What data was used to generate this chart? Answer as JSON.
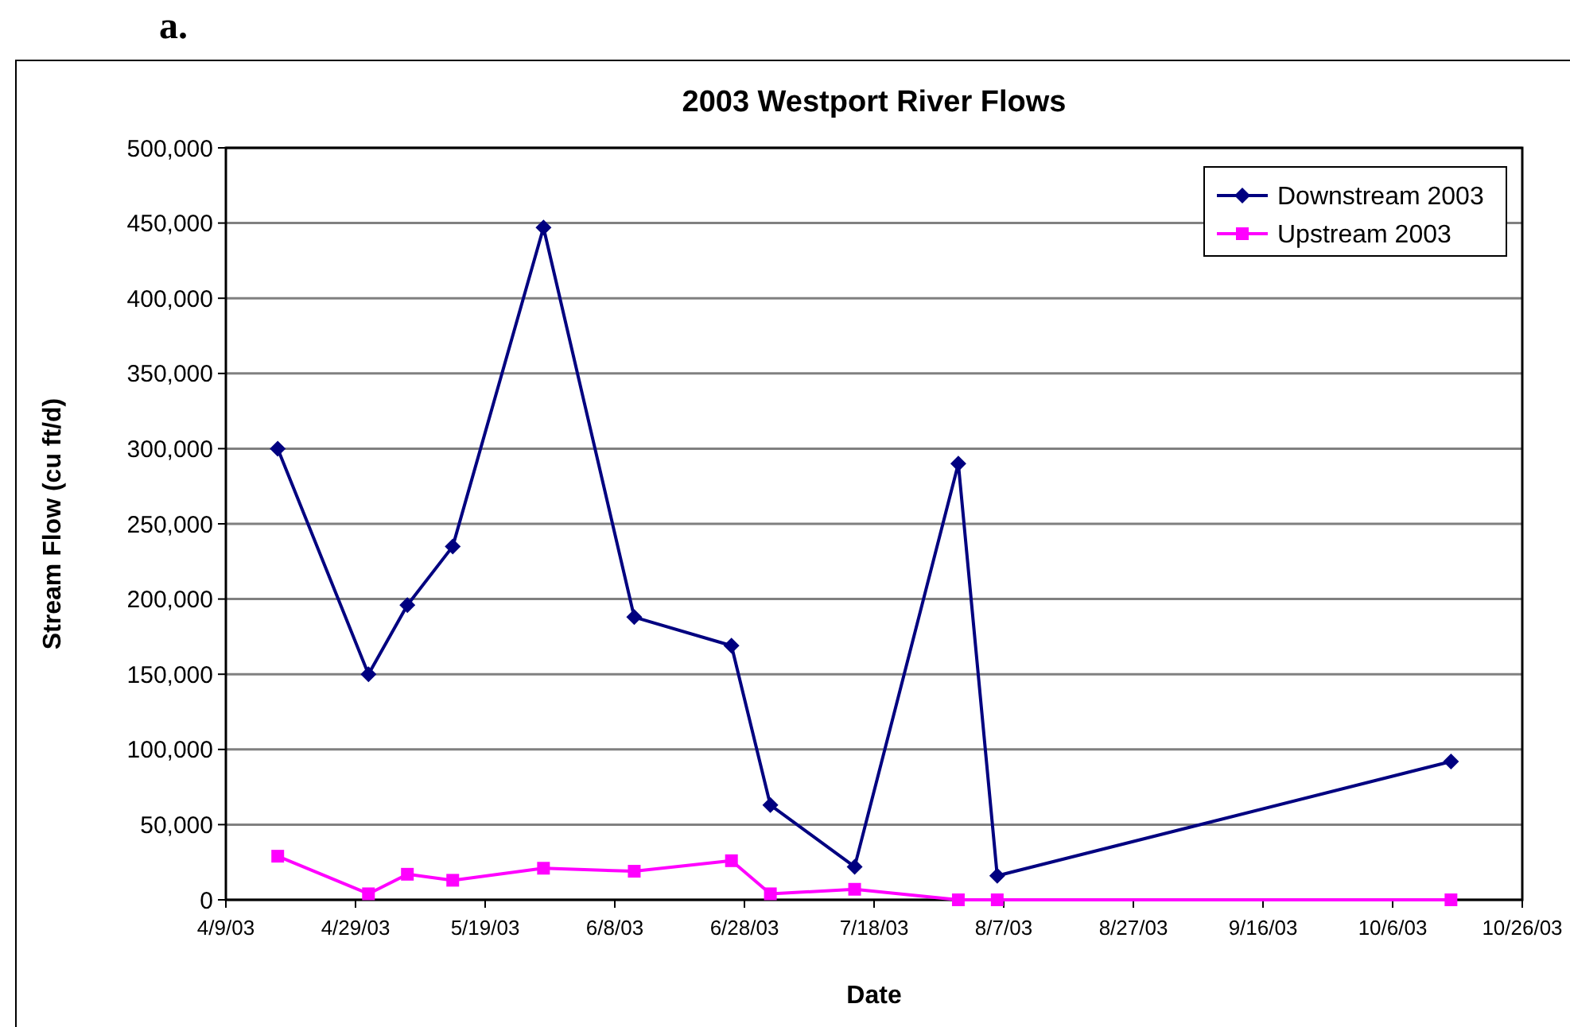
{
  "chart_data": {
    "type": "line",
    "title": "2003 Westport River Flows",
    "xlabel": "Date",
    "ylabel": "Stream Flow (cu ft/d)",
    "annotations": [
      "a."
    ],
    "x": [
      "2003-04-17",
      "2003-05-01",
      "2003-05-07",
      "2003-05-14",
      "2003-05-28",
      "2003-06-11",
      "2003-06-26",
      "2003-07-02",
      "2003-07-15",
      "2003-07-31",
      "2003-08-06",
      "2003-10-15"
    ],
    "series": [
      {
        "name": "Downstream 2003",
        "color": "#000080",
        "marker": "diamond",
        "values": [
          300000,
          150000,
          196000,
          235000,
          447000,
          188000,
          169000,
          63000,
          22000,
          290000,
          16000,
          92000
        ]
      },
      {
        "name": "Upstream 2003",
        "color": "#ff00ff",
        "marker": "square",
        "values": [
          29000,
          4000,
          17000,
          13000,
          21000,
          19000,
          26000,
          4000,
          7000,
          0,
          0,
          0
        ]
      }
    ],
    "xlim": [
      "2003-04-09",
      "2003-10-26"
    ],
    "xticks": [
      {
        "value": "2003-04-09",
        "label": "4/9/03"
      },
      {
        "value": "2003-04-29",
        "label": "4/29/03"
      },
      {
        "value": "2003-05-19",
        "label": "5/19/03"
      },
      {
        "value": "2003-06-08",
        "label": "6/8/03"
      },
      {
        "value": "2003-06-28",
        "label": "6/28/03"
      },
      {
        "value": "2003-07-18",
        "label": "7/18/03"
      },
      {
        "value": "2003-08-07",
        "label": "8/7/03"
      },
      {
        "value": "2003-08-27",
        "label": "8/27/03"
      },
      {
        "value": "2003-09-16",
        "label": "9/16/03"
      },
      {
        "value": "2003-10-06",
        "label": "10/6/03"
      },
      {
        "value": "2003-10-26",
        "label": "10/26/03"
      }
    ],
    "ylim": [
      0,
      500000
    ],
    "yticks": [
      {
        "value": 0,
        "label": "0"
      },
      {
        "value": 50000,
        "label": "50,000"
      },
      {
        "value": 100000,
        "label": "100,000"
      },
      {
        "value": 150000,
        "label": "150,000"
      },
      {
        "value": 200000,
        "label": "200,000"
      },
      {
        "value": 250000,
        "label": "250,000"
      },
      {
        "value": 300000,
        "label": "300,000"
      },
      {
        "value": 350000,
        "label": "350,000"
      },
      {
        "value": 400000,
        "label": "400,000"
      },
      {
        "value": 450000,
        "label": "450,000"
      },
      {
        "value": 500000,
        "label": "500,000"
      }
    ],
    "grid": "y",
    "legend": "top right",
    "line_style": "solid"
  }
}
